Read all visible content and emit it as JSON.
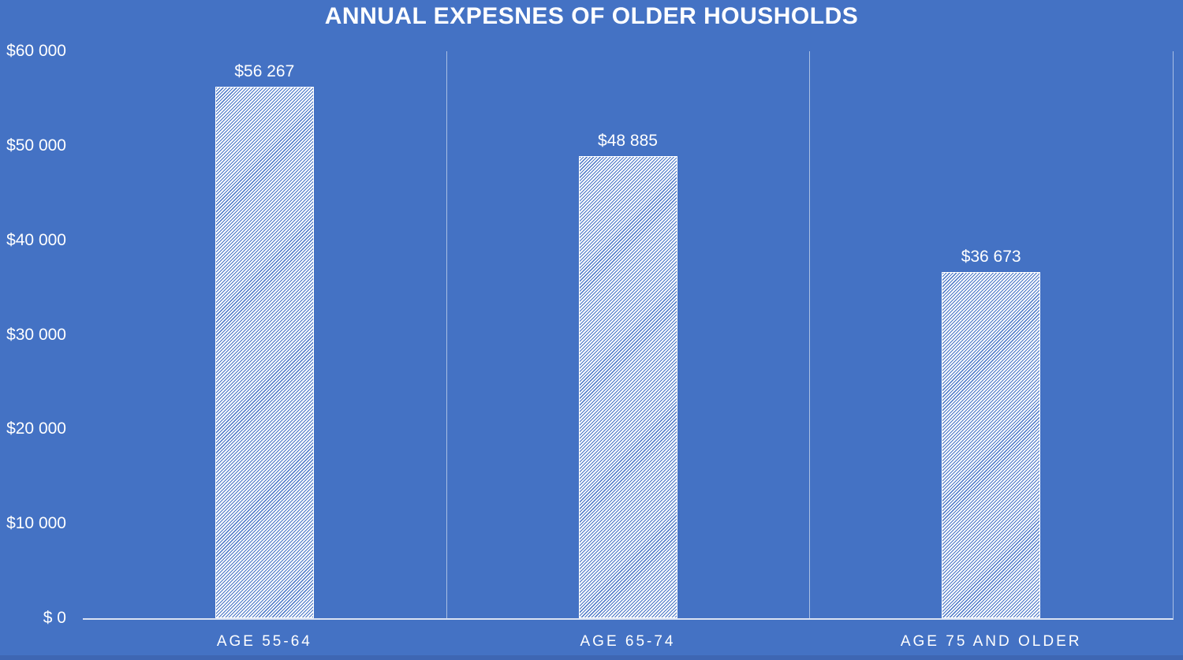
{
  "title": "ANNUAL EXPESNES OF OLDER HOUSHOLDS",
  "chart_data": {
    "type": "bar",
    "title": "ANNUAL EXPESNES OF OLDER HOUSHOLDS",
    "categories": [
      "AGE 55-64",
      "AGE 65-74",
      "AGE 75 AND OLDER"
    ],
    "values": [
      56267,
      48885,
      36673
    ],
    "value_labels": [
      "$56 267",
      "$48 885",
      "$36 673"
    ],
    "xlabel": "",
    "ylabel": "",
    "ylim": [
      0,
      60000
    ],
    "ytick_values": [
      60000,
      50000,
      40000,
      30000,
      20000,
      10000,
      0
    ],
    "ytick_labels": [
      "$60 000",
      "$50 000",
      "$40 000",
      "$30 000",
      "$20 000",
      "$10 000",
      "$ 0"
    ],
    "grid": "vertical category separators only, no horizontal gridlines",
    "legend": "none",
    "bar_style": "white bar with fine diagonal hatch of background blue, thin white outline"
  },
  "colors": {
    "background": "#4472C4",
    "text": "#FFFFFF",
    "bar_hatch_line": "#4472C4",
    "bar_fill": "#FFFFFF",
    "separator_line": "rgba(255,255,255,0.55)",
    "axis_line": "#DBE3F3",
    "bottom_edge": "#3E66B3"
  }
}
